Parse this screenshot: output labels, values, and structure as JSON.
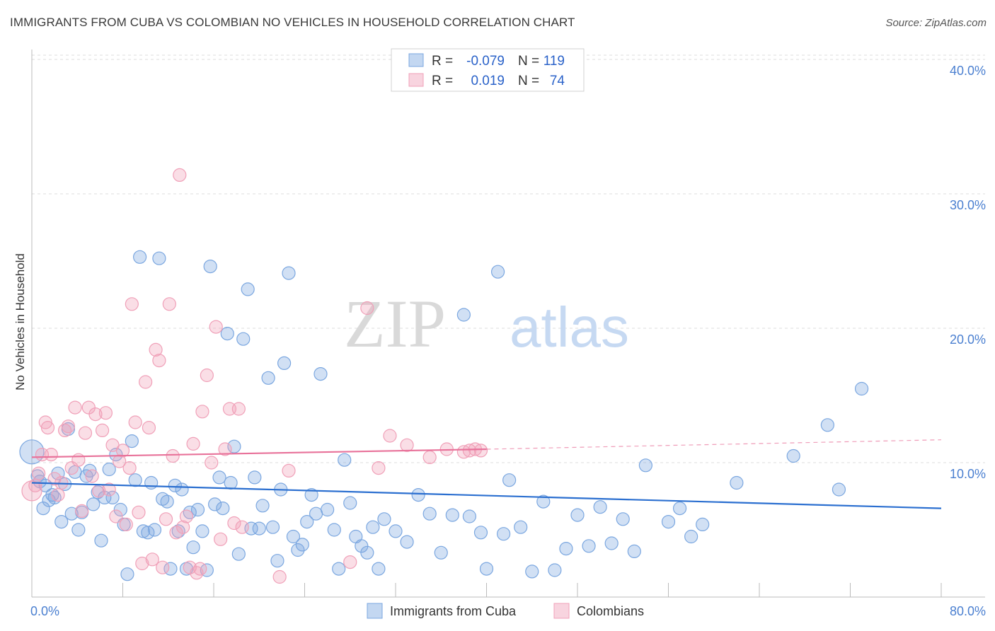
{
  "title": "IMMIGRANTS FROM CUBA VS COLOMBIAN NO VEHICLES IN HOUSEHOLD CORRELATION CHART",
  "source": "Source: ZipAtlas.com",
  "watermark": {
    "zip": "ZIP",
    "atlas": "atlas"
  },
  "chart_data": {
    "type": "scatter",
    "xlabel": "",
    "ylabel": "No Vehicles in Household",
    "xlim": [
      0,
      80
    ],
    "ylim": [
      0,
      42
    ],
    "x_tick_labels": [
      {
        "value": 0,
        "label": "0.0%"
      },
      {
        "value": 80,
        "label": "80.0%"
      }
    ],
    "y_tick_labels": [
      {
        "value": 10,
        "label": "10.0%"
      },
      {
        "value": 20,
        "label": "20.0%"
      },
      {
        "value": 30,
        "label": "30.0%"
      },
      {
        "value": 40,
        "label": "40.0%"
      }
    ],
    "legend": {
      "r_label": "R =",
      "n_label": "N =",
      "entries": [
        {
          "name": "Immigrants from Cuba",
          "r": "-0.079",
          "n": "119",
          "color": "#7ba7e0"
        },
        {
          "name": "Colombians",
          "r": "0.019",
          "n": "74",
          "color": "#f0a0b8"
        }
      ]
    },
    "series": [
      {
        "name": "Immigrants from Cuba",
        "color": "#7ba7e0",
        "line_color": "#2b6fd0",
        "trend": {
          "x0": 0,
          "y0": 8.5,
          "x1": 80,
          "y1": 6.6
        },
        "points": [
          [
            0,
            10.8
          ],
          [
            0.5,
            9.0
          ],
          [
            0.7,
            8.6
          ],
          [
            1.0,
            6.6
          ],
          [
            1.2,
            8.3
          ],
          [
            1.5,
            7.2
          ],
          [
            1.8,
            7.6
          ],
          [
            2.0,
            7.4
          ],
          [
            2.3,
            9.2
          ],
          [
            2.6,
            5.6
          ],
          [
            2.9,
            8.4
          ],
          [
            3.2,
            12.5
          ],
          [
            3.5,
            6.2
          ],
          [
            3.8,
            9.3
          ],
          [
            4.1,
            5.0
          ],
          [
            4.4,
            6.3
          ],
          [
            4.8,
            9.0
          ],
          [
            5.1,
            9.4
          ],
          [
            5.4,
            6.9
          ],
          [
            5.8,
            7.8
          ],
          [
            6.1,
            4.2
          ],
          [
            6.4,
            7.4
          ],
          [
            6.8,
            9.5
          ],
          [
            7.1,
            7.4
          ],
          [
            7.4,
            10.6
          ],
          [
            7.8,
            6.5
          ],
          [
            8.1,
            5.4
          ],
          [
            8.4,
            1.7
          ],
          [
            8.8,
            11.6
          ],
          [
            9.1,
            8.7
          ],
          [
            9.5,
            25.3
          ],
          [
            9.8,
            4.9
          ],
          [
            10.2,
            4.8
          ],
          [
            10.5,
            8.5
          ],
          [
            10.8,
            5.0
          ],
          [
            11.2,
            25.2
          ],
          [
            11.5,
            7.3
          ],
          [
            11.9,
            7.1
          ],
          [
            12.2,
            2.1
          ],
          [
            12.6,
            8.3
          ],
          [
            12.9,
            4.9
          ],
          [
            13.2,
            8.0
          ],
          [
            13.6,
            2.1
          ],
          [
            13.9,
            6.3
          ],
          [
            14.2,
            3.7
          ],
          [
            14.6,
            6.5
          ],
          [
            15.0,
            4.9
          ],
          [
            15.4,
            2.0
          ],
          [
            15.7,
            24.6
          ],
          [
            16.1,
            6.9
          ],
          [
            16.5,
            8.9
          ],
          [
            16.8,
            6.6
          ],
          [
            17.2,
            19.6
          ],
          [
            17.5,
            8.5
          ],
          [
            17.8,
            11.2
          ],
          [
            18.2,
            3.2
          ],
          [
            18.6,
            19.2
          ],
          [
            19.0,
            22.9
          ],
          [
            19.3,
            5.1
          ],
          [
            19.6,
            8.9
          ],
          [
            20.0,
            5.1
          ],
          [
            20.3,
            6.8
          ],
          [
            20.8,
            16.3
          ],
          [
            21.2,
            5.2
          ],
          [
            21.6,
            2.7
          ],
          [
            21.9,
            8.0
          ],
          [
            22.2,
            17.4
          ],
          [
            22.6,
            24.1
          ],
          [
            23.0,
            4.5
          ],
          [
            23.4,
            3.5
          ],
          [
            23.8,
            3.9
          ],
          [
            24.2,
            5.6
          ],
          [
            24.6,
            7.6
          ],
          [
            25.0,
            6.2
          ],
          [
            25.4,
            16.6
          ],
          [
            26.0,
            6.5
          ],
          [
            26.6,
            5.0
          ],
          [
            27.0,
            2.1
          ],
          [
            27.5,
            10.2
          ],
          [
            28.0,
            7.0
          ],
          [
            28.5,
            4.5
          ],
          [
            29.0,
            3.8
          ],
          [
            29.5,
            3.3
          ],
          [
            30.0,
            5.2
          ],
          [
            30.5,
            2.1
          ],
          [
            31.0,
            5.8
          ],
          [
            32.0,
            4.9
          ],
          [
            33.0,
            4.1
          ],
          [
            34.0,
            7.6
          ],
          [
            35.0,
            6.2
          ],
          [
            36.0,
            3.3
          ],
          [
            37.0,
            6.1
          ],
          [
            38.0,
            21.0
          ],
          [
            38.5,
            6.0
          ],
          [
            39.5,
            4.8
          ],
          [
            40.0,
            2.1
          ],
          [
            41.0,
            24.2
          ],
          [
            41.5,
            4.7
          ],
          [
            42.0,
            8.7
          ],
          [
            43.0,
            5.2
          ],
          [
            44.0,
            1.9
          ],
          [
            45.0,
            7.1
          ],
          [
            46.0,
            2.0
          ],
          [
            47.0,
            3.6
          ],
          [
            48.0,
            6.1
          ],
          [
            49.0,
            3.8
          ],
          [
            50.0,
            6.7
          ],
          [
            51.0,
            4.0
          ],
          [
            52.0,
            5.8
          ],
          [
            53.0,
            3.4
          ],
          [
            54.0,
            9.8
          ],
          [
            56.0,
            5.6
          ],
          [
            57.0,
            6.6
          ],
          [
            58.0,
            4.5
          ],
          [
            59.0,
            5.4
          ],
          [
            62.0,
            8.5
          ],
          [
            67.0,
            10.5
          ],
          [
            70.0,
            12.8
          ],
          [
            71.0,
            8.0
          ],
          [
            73.0,
            15.5
          ]
        ]
      },
      {
        "name": "Colombians",
        "color": "#f0a0b8",
        "line_color": "#e8729a",
        "trend": {
          "x0": 0,
          "y0": 10.4,
          "x1": 40,
          "y1": 11.0
        },
        "trend_dashed": {
          "x0": 40,
          "y0": 11.0,
          "x1": 80,
          "y1": 11.7
        },
        "points": [
          [
            0,
            7.9
          ],
          [
            0.3,
            8.3
          ],
          [
            0.6,
            9.2
          ],
          [
            0.9,
            10.6
          ],
          [
            1.2,
            13.0
          ],
          [
            1.4,
            12.6
          ],
          [
            1.7,
            10.6
          ],
          [
            2.0,
            8.8
          ],
          [
            2.3,
            7.6
          ],
          [
            2.6,
            8.5
          ],
          [
            2.9,
            12.4
          ],
          [
            3.2,
            12.7
          ],
          [
            3.5,
            9.6
          ],
          [
            3.8,
            14.1
          ],
          [
            4.1,
            10.2
          ],
          [
            4.4,
            6.4
          ],
          [
            4.7,
            12.2
          ],
          [
            5.0,
            14.1
          ],
          [
            5.3,
            9.0
          ],
          [
            5.6,
            13.6
          ],
          [
            5.9,
            7.9
          ],
          [
            6.2,
            12.4
          ],
          [
            6.5,
            13.7
          ],
          [
            6.8,
            8.0
          ],
          [
            7.1,
            11.3
          ],
          [
            7.4,
            6.0
          ],
          [
            7.7,
            10.1
          ],
          [
            8.0,
            10.9
          ],
          [
            8.3,
            5.4
          ],
          [
            8.6,
            9.6
          ],
          [
            8.8,
            21.8
          ],
          [
            9.1,
            13.0
          ],
          [
            9.4,
            6.3
          ],
          [
            9.7,
            2.5
          ],
          [
            10.0,
            16.0
          ],
          [
            10.3,
            12.6
          ],
          [
            10.6,
            2.8
          ],
          [
            10.9,
            18.4
          ],
          [
            11.2,
            17.6
          ],
          [
            11.5,
            2.2
          ],
          [
            11.8,
            5.8
          ],
          [
            12.1,
            21.8
          ],
          [
            12.4,
            10.5
          ],
          [
            12.7,
            4.8
          ],
          [
            13.0,
            31.4
          ],
          [
            13.3,
            5.2
          ],
          [
            13.6,
            6.0
          ],
          [
            13.9,
            2.2
          ],
          [
            14.2,
            11.4
          ],
          [
            14.5,
            1.8
          ],
          [
            14.8,
            2.1
          ],
          [
            15.0,
            13.8
          ],
          [
            15.4,
            16.5
          ],
          [
            15.8,
            10.0
          ],
          [
            16.2,
            20.1
          ],
          [
            16.6,
            4.3
          ],
          [
            17.0,
            11.0
          ],
          [
            17.4,
            14.0
          ],
          [
            17.8,
            5.5
          ],
          [
            18.2,
            14.0
          ],
          [
            18.5,
            5.2
          ],
          [
            21.8,
            1.5
          ],
          [
            22.6,
            9.4
          ],
          [
            28.0,
            2.6
          ],
          [
            29.5,
            21.5
          ],
          [
            30.5,
            9.6
          ],
          [
            31.5,
            12.0
          ],
          [
            33.0,
            11.3
          ],
          [
            35.0,
            10.4
          ],
          [
            36.5,
            11.0
          ],
          [
            38.0,
            10.8
          ],
          [
            38.5,
            10.9
          ],
          [
            39.0,
            11.0
          ],
          [
            39.5,
            10.9
          ]
        ]
      }
    ]
  }
}
